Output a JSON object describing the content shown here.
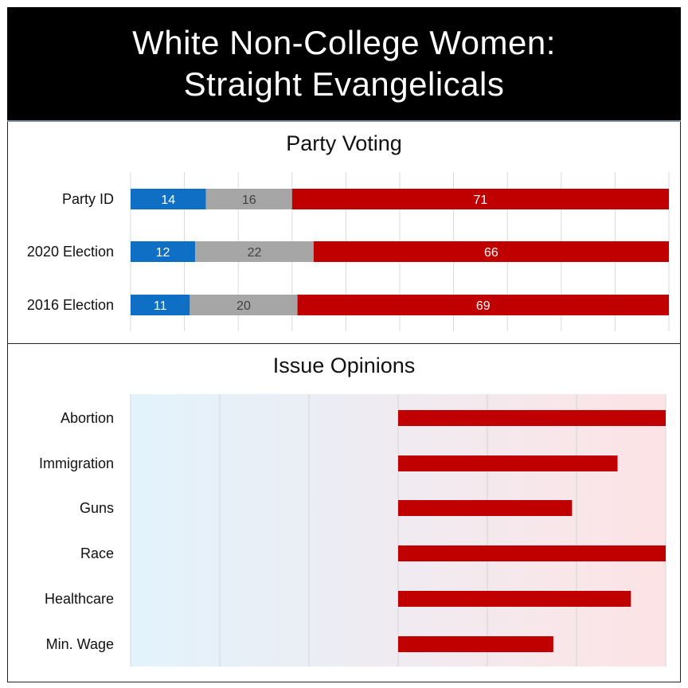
{
  "title": {
    "line1": "White Non-College Women:",
    "line2": "Straight Evangelicals"
  },
  "colors": {
    "democrat": "#0f6fc4",
    "other": "#a6a6a6",
    "republican": "#c00000",
    "liberal_bg": "#e2f3fc",
    "conservative_bg": "#fde3e5"
  },
  "chart_data": [
    {
      "type": "bar",
      "orientation": "horizontal",
      "stacked": true,
      "title": "Party Voting",
      "categories": [
        "Party ID",
        "2020 Election",
        "2016 Election"
      ],
      "series": [
        {
          "color": "#0f6fc4",
          "values": [
            14,
            12,
            11
          ]
        },
        {
          "color": "#a6a6a6",
          "values": [
            16,
            22,
            20
          ]
        },
        {
          "color": "#c00000",
          "values": [
            71,
            66,
            69
          ]
        }
      ],
      "xlim": [
        0,
        100
      ],
      "grid": true,
      "data_labels": true
    },
    {
      "type": "bar",
      "orientation": "horizontal",
      "title": "Issue Opinions",
      "categories": [
        "Abortion",
        "Immigration",
        "Guns",
        "Race",
        "Healthcare",
        "Min. Wage"
      ],
      "values": [
        100,
        82,
        65,
        100,
        87,
        58
      ],
      "xlim": [
        -100,
        100
      ],
      "grid": true,
      "background_gradient": [
        "#e2f3fc",
        "#fde3e5"
      ]
    }
  ]
}
